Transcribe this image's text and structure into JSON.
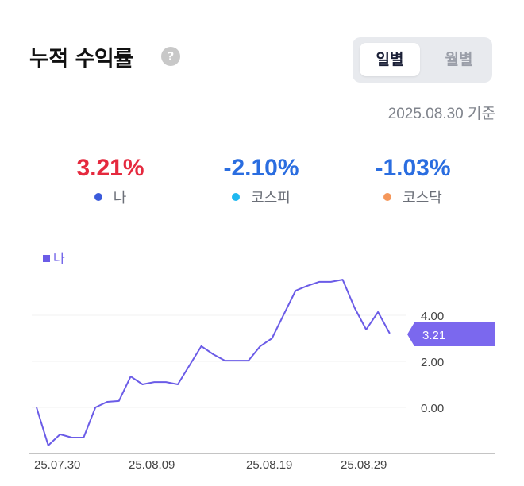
{
  "header": {
    "title": "누적 수익률",
    "help_icon": "?",
    "tabs": [
      {
        "label": "일별",
        "active": true
      },
      {
        "label": "월별",
        "active": false
      }
    ],
    "as_of": "2025.08.30 기준"
  },
  "summary": [
    {
      "value": "3.21%",
      "label": "나",
      "dot_color": "#3b5bdb",
      "value_color": "#e5293e"
    },
    {
      "value": "-2.10%",
      "label": "코스피",
      "dot_color": "#1fb8f0",
      "value_color": "#2a6de0"
    },
    {
      "value": "-1.03%",
      "label": "코스닥",
      "dot_color": "#f5975a",
      "value_color": "#2a6de0"
    }
  ],
  "chart_data": {
    "type": "line",
    "title": "",
    "legend": [
      "나"
    ],
    "legend_position": "top-left",
    "xlabel": "",
    "ylabel": "",
    "x_tick_labels": [
      "25.07.30",
      "25.08.09",
      "25.08.19",
      "25.08.29"
    ],
    "y_tick_labels": [
      "4.00",
      "2.00",
      "0.00"
    ],
    "ylim": [
      -1.8,
      5.5
    ],
    "grid": true,
    "current_value_label": "3.21",
    "series": [
      {
        "name": "나",
        "color": "#6b5ce7",
        "values": [
          0.0,
          -1.65,
          -1.17,
          -1.31,
          -1.31,
          0.0,
          0.24,
          0.28,
          1.34,
          1.0,
          1.1,
          1.1,
          1.0,
          1.83,
          2.66,
          2.31,
          2.03,
          2.03,
          2.03,
          2.66,
          3.0,
          4.03,
          5.07,
          5.28,
          5.45,
          5.45,
          5.55,
          4.34,
          3.38,
          4.14,
          3.21
        ]
      }
    ]
  }
}
